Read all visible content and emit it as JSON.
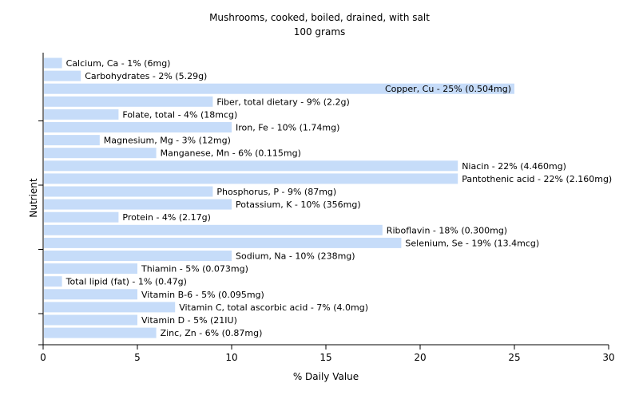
{
  "chart_data": {
    "type": "bar",
    "orientation": "horizontal",
    "title": "Mushrooms, cooked, boiled, drained, with salt",
    "subtitle": "100 grams",
    "xlabel": "% Daily Value",
    "ylabel": "Nutrient",
    "xlim": [
      0,
      30
    ],
    "xticks": [
      0,
      5,
      10,
      15,
      20,
      25,
      30
    ],
    "grid": false,
    "bar_color": "#c6dcf9",
    "categories": [
      "Calcium, Ca",
      "Carbohydrates",
      "Copper, Cu",
      "Fiber, total dietary",
      "Folate, total",
      "Iron, Fe",
      "Magnesium, Mg",
      "Manganese, Mn",
      "Niacin",
      "Pantothenic acid",
      "Phosphorus, P",
      "Potassium, K",
      "Protein",
      "Riboflavin",
      "Selenium, Se",
      "Sodium, Na",
      "Thiamin",
      "Total lipid (fat)",
      "Vitamin B-6",
      "Vitamin C, total ascorbic acid",
      "Vitamin D",
      "Zinc, Zn"
    ],
    "values": [
      1,
      2,
      25,
      9,
      4,
      10,
      3,
      6,
      22,
      22,
      9,
      10,
      4,
      18,
      19,
      10,
      5,
      1,
      5,
      7,
      5,
      6
    ],
    "labels": [
      "Calcium, Ca - 1% (6mg)",
      "Carbohydrates - 2% (5.29g)",
      "Copper, Cu - 25% (0.504mg)",
      "Fiber, total dietary - 9% (2.2g)",
      "Folate, total - 4% (18mcg)",
      "Iron, Fe - 10% (1.74mg)",
      "Magnesium, Mg - 3% (12mg)",
      "Manganese, Mn - 6% (0.115mg)",
      "Niacin - 22% (4.460mg)",
      "Pantothenic acid - 22% (2.160mg)",
      "Phosphorus, P - 9% (87mg)",
      "Potassium, K - 10% (356mg)",
      "Protein - 4% (2.17g)",
      "Riboflavin - 18% (0.300mg)",
      "Selenium, Se - 19% (13.4mcg)",
      "Sodium, Na - 10% (238mg)",
      "Thiamin - 5% (0.073mg)",
      "Total lipid (fat) - 1% (0.47g)",
      "Vitamin B-6 - 5% (0.095mg)",
      "Vitamin C, total ascorbic acid - 7% (4.0mg)",
      "Vitamin D - 5% (21IU)",
      "Zinc, Zn - 6% (0.87mg)"
    ]
  }
}
